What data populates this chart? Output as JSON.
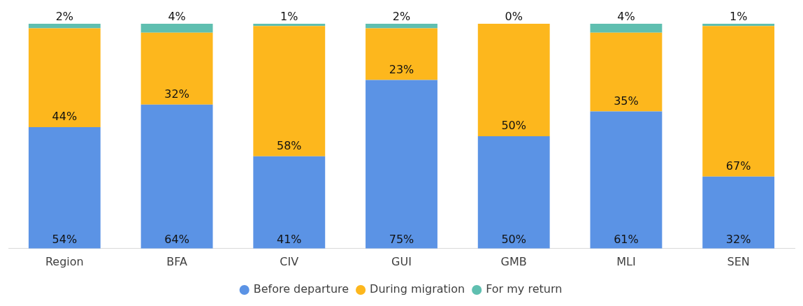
{
  "chart_data": {
    "type": "bar",
    "stacked": true,
    "categories": [
      "Region",
      "BFA",
      "CIV",
      "GUI",
      "GMB",
      "MLI",
      "SEN"
    ],
    "ylim": [
      0,
      100
    ],
    "tick_labels": "x",
    "grid": false,
    "legend": "bottom",
    "series": [
      {
        "name": "Before departure",
        "color": "#5b93e5",
        "values": [
          54,
          64,
          41,
          75,
          50,
          61,
          32
        ],
        "value_labels": [
          "54%",
          "64%",
          "41%",
          "75%",
          "50%",
          "61%",
          "32%"
        ]
      },
      {
        "name": "During migration",
        "color": "#fdb71d",
        "values": [
          44,
          32,
          58,
          23,
          50,
          35,
          67
        ],
        "value_labels": [
          "44%",
          "32%",
          "58%",
          "23%",
          "50%",
          "35%",
          "67%"
        ]
      },
      {
        "name": "For my return",
        "color": "#5fbfb0",
        "values": [
          2,
          4,
          1,
          2,
          0,
          4,
          1
        ],
        "value_labels": [
          "2%",
          "4%",
          "1%",
          "2%",
          "0%",
          "4%",
          "1%"
        ]
      }
    ]
  }
}
